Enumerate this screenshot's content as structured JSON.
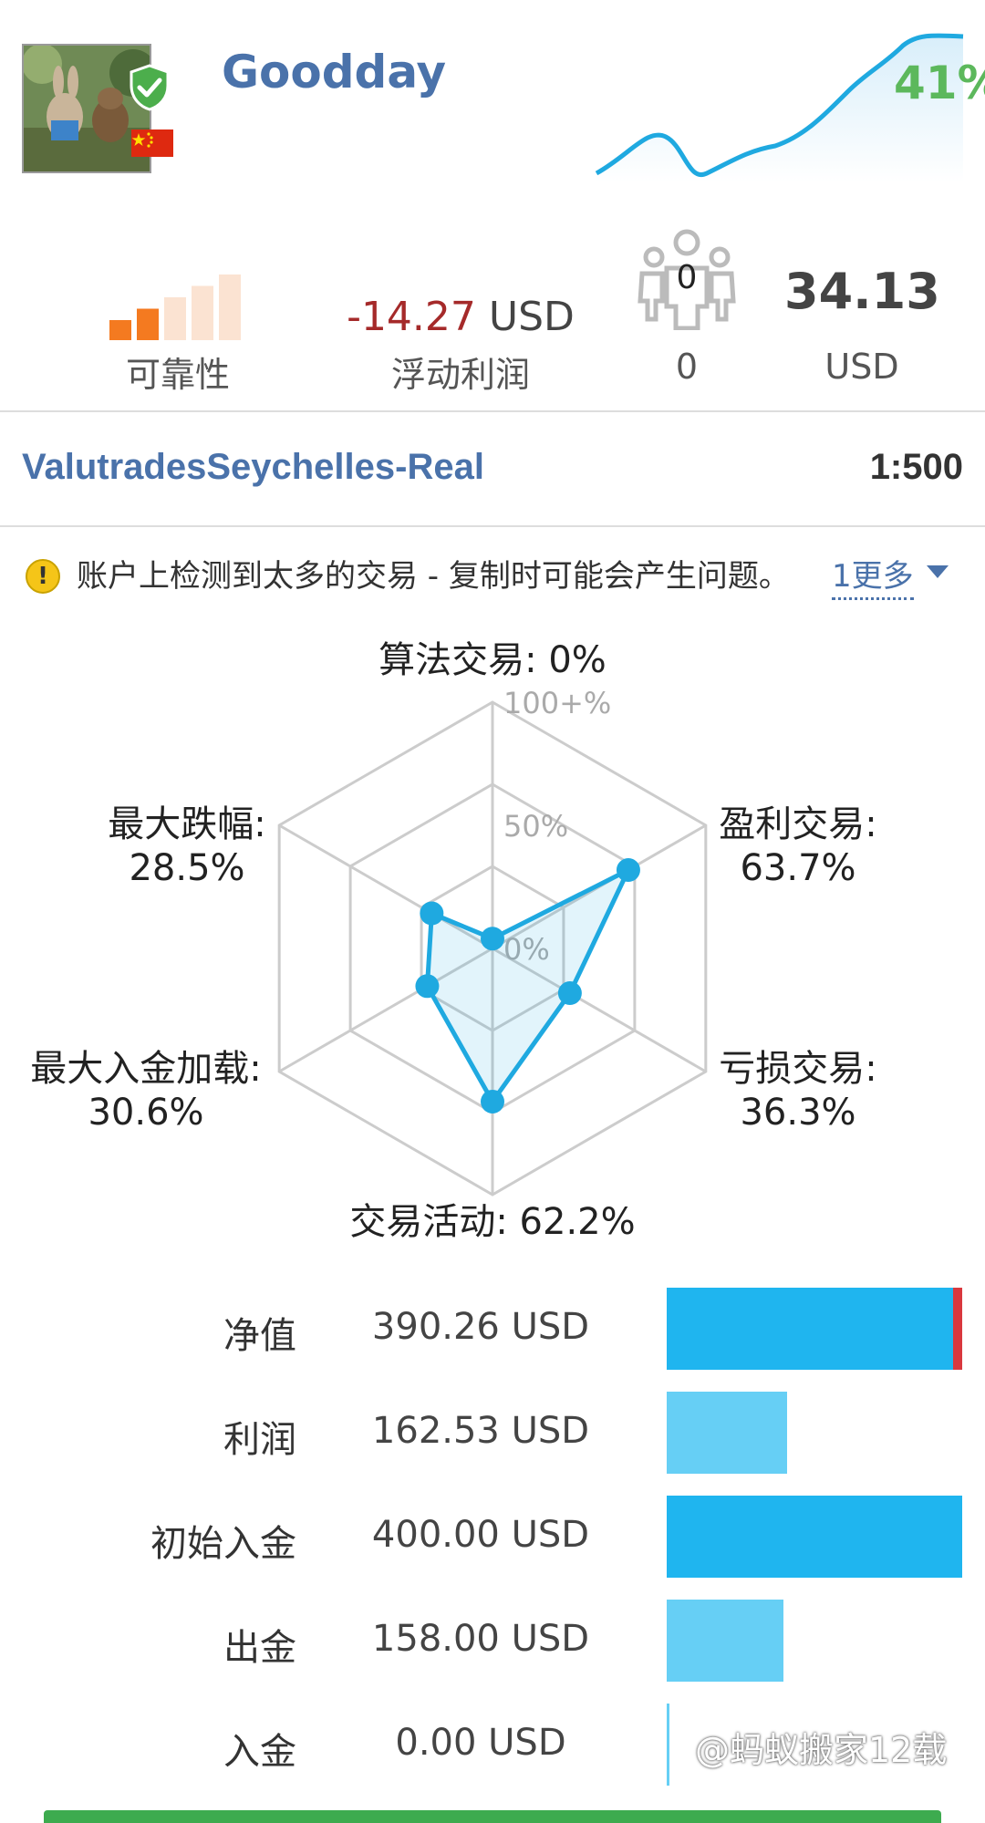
{
  "header": {
    "name": "Goodday",
    "growth_percent": "41%",
    "verified_icon": "check-shield-icon",
    "flag_icon": "china-flag-icon",
    "colors": {
      "name": "#4a72aa",
      "growth": "#5cb85c",
      "line": "#1fa9e0"
    }
  },
  "stats": {
    "reliability_label": "可靠性",
    "reliability_level": 2,
    "reliability_max": 5,
    "floating_profit_value": "-14.27",
    "floating_profit_unit": "USD",
    "floating_profit_label": "浮动利润",
    "subscribers_icon_count": "0",
    "subscribers_count": "0",
    "equity_value": "34.13",
    "equity_unit": "USD"
  },
  "account": {
    "server": "ValutradesSeychelles-Real",
    "leverage": "1:500"
  },
  "warning": {
    "text": "账户上检测到太多的交易 - 复制时可能会产生问题。",
    "more": "1更多"
  },
  "chart_data": {
    "type": "radar",
    "axes": [
      {
        "label": "算法交易: 0%",
        "value": 0
      },
      {
        "label": "盈利交易:",
        "sub": "63.7%",
        "value": 63.7
      },
      {
        "label": "亏损交易:",
        "sub": "36.3%",
        "value": 36.3
      },
      {
        "label": "交易活动: 62.2%",
        "value": 62.2
      },
      {
        "label": "最大入金加载:",
        "sub": "30.6%",
        "value": 30.6
      },
      {
        "label": "最大跌幅:",
        "sub": "28.5%",
        "value": 28.5
      }
    ],
    "ticks": [
      "0%",
      "50%",
      "100+%"
    ],
    "range": [
      0,
      100
    ]
  },
  "balances": [
    {
      "label": "净值",
      "value": "390.26 USD",
      "amount": 390.26,
      "color": "#1fb5ef",
      "marker": true
    },
    {
      "label": "利润",
      "value": "162.53 USD",
      "amount": 162.53,
      "color": "#66cff5"
    },
    {
      "label": "初始入金",
      "value": "400.00 USD",
      "amount": 400.0,
      "color": "#1fb5ef"
    },
    {
      "label": "出金",
      "value": "158.00 USD",
      "amount": 158.0,
      "color": "#66cff5"
    },
    {
      "label": "入金",
      "value": "0.00 USD",
      "amount": 0.0,
      "color": "#66cff5"
    }
  ],
  "watermark": "@蚂蚁搬家12载"
}
